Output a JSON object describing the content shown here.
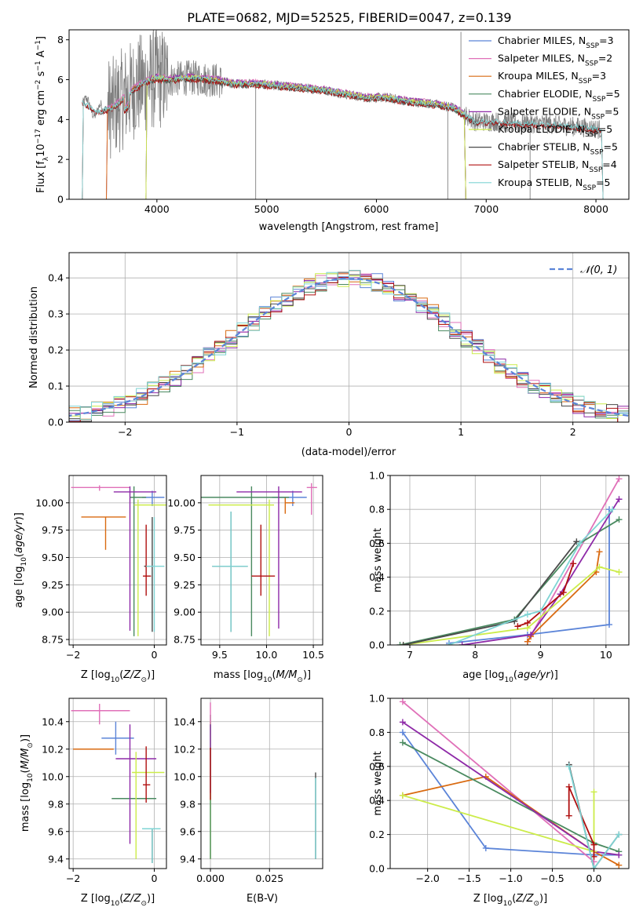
{
  "figure_title": "PLATE=0682, MJD=52525, FIBERID=0047, z=0.139",
  "colors": {
    "Chabrier MILES": "#5b84d8",
    "Salpeter MILES": "#e070b8",
    "Kroupa MILES": "#d96a10",
    "Chabrier ELODIE": "#4a8a60",
    "Salpeter ELODIE": "#8e2aa8",
    "Kroupa ELODIE": "#ccec4a",
    "Chabrier STELIB": "#4a4a4a",
    "Salpeter STELIB": "#b01010",
    "Kroupa STELIB": "#7fd4d4",
    "data": "#808080",
    "normal": "#5b84d8"
  },
  "chart_data": [
    {
      "id": "spectrum",
      "type": "line",
      "xlabel": "wavelength [Angstrom, rest frame]",
      "ylabel": "Flux [f_λ 10^-17 erg cm^-2 s^-1 A^-1]",
      "xlim": [
        3200,
        8300
      ],
      "ylim": [
        0,
        8.5
      ],
      "xticks": [
        4000,
        5000,
        6000,
        7000,
        8000
      ],
      "yticks": [
        0,
        2,
        4,
        6,
        8
      ],
      "grid": false,
      "legend_position": "right",
      "data_continuum": {
        "x": [
          3320,
          3450,
          3600,
          3700,
          3800,
          3900,
          4000,
          4100,
          4300,
          4500,
          4700,
          4900,
          5100,
          5300,
          5500,
          5700,
          5900,
          6100,
          6300,
          6500,
          6700,
          6900,
          7100,
          7300,
          7500,
          7700,
          7900,
          8050
        ],
        "y": [
          4.9,
          4.4,
          4.6,
          5.1,
          5.6,
          5.9,
          6.1,
          6.0,
          6.1,
          6.0,
          5.8,
          5.8,
          5.7,
          5.6,
          5.5,
          5.3,
          5.1,
          5.1,
          4.9,
          4.8,
          4.6,
          3.9,
          3.9,
          3.8,
          3.8,
          3.7,
          3.6,
          3.5
        ]
      },
      "series": [
        {
          "name": "Chabrier MILES",
          "n_ssp": "3",
          "start": 3540,
          "end": 6800,
          "offset": 0.05
        },
        {
          "name": "Salpeter MILES",
          "n_ssp": "2",
          "start": 3540,
          "end": 6800,
          "offset": 0.1
        },
        {
          "name": "Kroupa MILES",
          "n_ssp": "3",
          "start": 3540,
          "end": 6800,
          "offset": 0.0
        },
        {
          "name": "Chabrier ELODIE",
          "n_ssp": "5",
          "start": 3900,
          "end": 6800,
          "offset": -0.05
        },
        {
          "name": "Salpeter ELODIE",
          "n_ssp": "5",
          "start": 3900,
          "end": 6800,
          "offset": 0.08
        },
        {
          "name": "Kroupa ELODIE",
          "n_ssp": "5",
          "start": 3900,
          "end": 6800,
          "offset": 0.03
        },
        {
          "name": "Chabrier STELIB",
          "n_ssp": "5",
          "start": 3320,
          "end": 8050,
          "offset": -0.08
        },
        {
          "name": "Salpeter STELIB",
          "n_ssp": "4",
          "start": 3320,
          "end": 8050,
          "offset": -0.1
        },
        {
          "name": "Kroupa STELIB",
          "n_ssp": "5",
          "start": 3320,
          "end": 8050,
          "offset": 0.0
        }
      ]
    },
    {
      "id": "residuals",
      "type": "histogram",
      "xlabel": "(data-model)/error",
      "ylabel": "Normed distribution",
      "xlim": [
        -2.5,
        2.5
      ],
      "ylim": [
        0,
        0.47
      ],
      "xticks": [
        -2,
        -1,
        0,
        1,
        2
      ],
      "yticks": [
        0.0,
        0.1,
        0.2,
        0.3,
        0.4
      ],
      "grid": true,
      "legend": [
        "𝒩(0, 1)"
      ],
      "legend_position": "top-right",
      "bin_width": 0.1
    },
    {
      "id": "age_vs_Z",
      "type": "errorbar",
      "xlabel": "Z [log10(Z/Z⊙)]",
      "ylabel": "age  [log10(age/yr)]",
      "xlim": [
        -2.1,
        0.3
      ],
      "ylim": [
        8.7,
        10.25
      ],
      "xticks": [
        -2,
        0
      ],
      "yticks": [
        8.75,
        9.0,
        9.25,
        9.5,
        9.75,
        10.0
      ],
      "grid": true,
      "points": [
        {
          "model": "Chabrier MILES",
          "x": -0.05,
          "xerr": [
            0.25,
            0.3
          ],
          "y": 10.05,
          "yerr": [
            0.08,
            0.06
          ]
        },
        {
          "model": "Salpeter MILES",
          "x": -1.35,
          "xerr": [
            0.7,
            0.75
          ],
          "y": 10.14,
          "yerr": [
            0.03,
            0.02
          ]
        },
        {
          "model": "Kroupa MILES",
          "x": -1.2,
          "xerr": [
            0.6,
            0.5
          ],
          "y": 9.87,
          "yerr": [
            0.3,
            0.0
          ]
        },
        {
          "model": "Chabrier ELODIE",
          "x": -0.5,
          "xerr": [
            0.1,
            0.3
          ],
          "y": 10.05,
          "yerr": [
            1.27,
            0.1
          ]
        },
        {
          "model": "Salpeter ELODIE",
          "x": -0.6,
          "xerr": [
            0.4,
            0.65
          ],
          "y": 10.1,
          "yerr": [
            1.27,
            0.05
          ]
        },
        {
          "model": "Kroupa ELODIE",
          "x": -0.4,
          "xerr": [
            0.1,
            0.7
          ],
          "y": 9.98,
          "yerr": [
            1.2,
            0.05
          ]
        },
        {
          "model": "Chabrier STELIB",
          "x": -0.05,
          "xerr": [
            0.2,
            0.0
          ],
          "y": 9.42,
          "yerr": [
            0.6,
            0.45
          ]
        },
        {
          "model": "Salpeter STELIB",
          "x": -0.2,
          "xerr": [
            0.08,
            0.12
          ],
          "y": 9.33,
          "yerr": [
            0.18,
            0.47
          ]
        },
        {
          "model": "Kroupa STELIB",
          "x": 0.0,
          "xerr": [
            0.2,
            0.25
          ],
          "y": 9.42,
          "yerr": [
            0.6,
            0.45
          ]
        }
      ]
    },
    {
      "id": "age_vs_mass",
      "type": "errorbar",
      "xlabel": "mass [log10(M/M⊙)]",
      "ylabel": "",
      "xlim": [
        9.3,
        10.6
      ],
      "ylim": [
        8.7,
        10.25
      ],
      "xticks": [
        9.5,
        10.0,
        10.5
      ],
      "yticks": [
        8.75,
        9.0,
        9.25,
        9.5,
        9.75,
        10.0
      ],
      "grid": true,
      "points": [
        {
          "model": "Chabrier MILES",
          "x": 10.28,
          "xerr": [
            0.22,
            0.15
          ],
          "y": 10.05,
          "yerr": [
            0.08,
            0.06
          ]
        },
        {
          "model": "Salpeter MILES",
          "x": 10.48,
          "xerr": [
            0.05,
            0.06
          ],
          "y": 10.14,
          "yerr": [
            0.25,
            0.04
          ]
        },
        {
          "model": "Kroupa MILES",
          "x": 10.2,
          "xerr": [
            0.0,
            0.1
          ],
          "y": 10.0,
          "yerr": [
            0.1,
            0.05
          ]
        },
        {
          "model": "Chabrier ELODIE",
          "x": 9.84,
          "xerr": [
            0.55,
            0.4
          ],
          "y": 10.05,
          "yerr": [
            1.27,
            0.1
          ]
        },
        {
          "model": "Salpeter ELODIE",
          "x": 10.13,
          "xerr": [
            0.45,
            0.25
          ],
          "y": 10.1,
          "yerr": [
            1.25,
            0.05
          ]
        },
        {
          "model": "Kroupa ELODIE",
          "x": 10.03,
          "xerr": [
            0.65,
            0.05
          ],
          "y": 9.98,
          "yerr": [
            1.2,
            0.05
          ]
        },
        {
          "model": "Chabrier STELIB",
          "x": 9.62,
          "xerr": [
            0.2,
            0.18
          ],
          "y": 9.42,
          "yerr": [
            0.6,
            0.5
          ]
        },
        {
          "model": "Salpeter STELIB",
          "x": 9.94,
          "xerr": [
            0.1,
            0.15
          ],
          "y": 9.33,
          "yerr": [
            0.18,
            0.47
          ]
        },
        {
          "model": "Kroupa STELIB",
          "x": 9.62,
          "xerr": [
            0.2,
            0.18
          ],
          "y": 9.42,
          "yerr": [
            0.6,
            0.5
          ]
        }
      ]
    },
    {
      "id": "weight_vs_age",
      "type": "line",
      "xlabel": "age  [log10(age/yr)]",
      "ylabel": "mass weight",
      "xlim": [
        6.7,
        10.35
      ],
      "ylim": [
        0,
        1.0
      ],
      "xticks": [
        7,
        8,
        9,
        10
      ],
      "yticks": [
        0.0,
        0.2,
        0.4,
        0.6,
        0.8,
        1.0
      ],
      "grid": true,
      "series": [
        {
          "name": "Chabrier MILES",
          "x": [
            7.6,
            8.8,
            10.05,
            10.05
          ],
          "y": [
            0.01,
            0.06,
            0.12,
            0.8
          ]
        },
        {
          "name": "Salpeter MILES",
          "x": [
            8.8,
            10.2
          ],
          "y": [
            0.02,
            0.98
          ]
        },
        {
          "name": "Kroupa MILES",
          "x": [
            8.8,
            8.85,
            9.85,
            9.9
          ],
          "y": [
            0.02,
            0.05,
            0.43,
            0.55
          ]
        },
        {
          "name": "Chabrier ELODIE",
          "x": [
            6.85,
            8.6,
            9.6,
            10.2
          ],
          "y": [
            0.0,
            0.15,
            0.6,
            0.74
          ]
        },
        {
          "name": "Salpeter ELODIE",
          "x": [
            7.8,
            8.85,
            9.3,
            10.2
          ],
          "y": [
            0.0,
            0.06,
            0.3,
            0.86
          ]
        },
        {
          "name": "Kroupa ELODIE",
          "x": [
            6.9,
            8.8,
            9.9,
            10.2
          ],
          "y": [
            0.0,
            0.1,
            0.46,
            0.43
          ]
        },
        {
          "name": "Chabrier STELIB",
          "x": [
            6.9,
            8.6,
            9.55
          ],
          "y": [
            0.0,
            0.14,
            0.61
          ]
        },
        {
          "name": "Salpeter STELIB",
          "x": [
            8.65,
            8.8,
            9.35,
            9.5
          ],
          "y": [
            0.11,
            0.13,
            0.31,
            0.48
          ]
        },
        {
          "name": "Kroupa STELIB",
          "x": [
            7.6,
            8.8,
            9.0,
            9.6,
            10.1
          ],
          "y": [
            0.0,
            0.18,
            0.2,
            0.6,
            0.8
          ]
        }
      ]
    },
    {
      "id": "mass_vs_Z",
      "type": "errorbar",
      "xlabel": "Z [log10(Z/Z⊙)]",
      "ylabel": "mass [log10(M/M⊙)]",
      "xlim": [
        -2.1,
        0.3
      ],
      "ylim": [
        9.33,
        10.57
      ],
      "xticks": [
        -2,
        0
      ],
      "yticks": [
        9.4,
        9.6,
        9.8,
        10.0,
        10.2,
        10.4
      ],
      "grid": true,
      "points": [
        {
          "model": "Chabrier MILES",
          "x": -0.95,
          "xerr": [
            0.35,
            0.45
          ],
          "y": 10.28,
          "yerr": [
            0.12,
            0.12
          ]
        },
        {
          "model": "Salpeter MILES",
          "x": -1.35,
          "xerr": [
            0.7,
            0.75
          ],
          "y": 10.48,
          "yerr": [
            0.1,
            0.05
          ]
        },
        {
          "model": "Kroupa MILES",
          "x": -1.3,
          "xerr": [
            0.7,
            0.3
          ],
          "y": 10.2,
          "yerr": [
            0.0,
            0.0
          ]
        },
        {
          "model": "Chabrier ELODIE",
          "x": -0.65,
          "xerr": [
            0.4,
            0.7
          ],
          "y": 9.84,
          "yerr": [
            0.0,
            0.0
          ]
        },
        {
          "model": "Salpeter ELODIE",
          "x": -0.6,
          "xerr": [
            0.35,
            0.65
          ],
          "y": 10.13,
          "yerr": [
            0.62,
            0.25
          ]
        },
        {
          "model": "Kroupa ELODIE",
          "x": -0.45,
          "xerr": [
            0.1,
            0.7
          ],
          "y": 10.03,
          "yerr": [
            0.63,
            0.15
          ]
        },
        {
          "model": "Chabrier STELIB",
          "x": -0.05,
          "xerr": [
            0.2,
            0.2
          ],
          "y": 9.62,
          "yerr": [
            0.25,
            0.0
          ]
        },
        {
          "model": "Salpeter STELIB",
          "x": -0.2,
          "xerr": [
            0.08,
            0.1
          ],
          "y": 9.94,
          "yerr": [
            0.13,
            0.28
          ]
        },
        {
          "model": "Kroupa STELIB",
          "x": -0.05,
          "xerr": [
            0.25,
            0.2
          ],
          "y": 9.62,
          "yerr": [
            0.25,
            0.0
          ]
        }
      ]
    },
    {
      "id": "mass_vs_ebv",
      "type": "errorbar",
      "xlabel": "E(B-V)",
      "ylabel": "",
      "xlim": [
        -0.004,
        0.0475
      ],
      "ylim": [
        9.33,
        10.57
      ],
      "xticks": [
        0.0,
        0.025
      ],
      "xtick_labels": [
        "0.000",
        "0.025"
      ],
      "yticks": [
        9.4,
        9.6,
        9.8,
        10.0,
        10.2,
        10.4
      ],
      "grid": true,
      "points": [
        {
          "model": "Kroupa ELODIE",
          "x": 0.0,
          "y": 9.9,
          "yerr": [
            0.5,
            0.5
          ]
        },
        {
          "model": "Chabrier ELODIE",
          "x": 0.0,
          "y": 9.95,
          "yerr": [
            0.55,
            0.5
          ]
        },
        {
          "model": "Salpeter MILES",
          "x": 0.0,
          "y": 10.48,
          "yerr": [
            0.1,
            0.06
          ]
        },
        {
          "model": "Salpeter ELODIE",
          "x": 0.0,
          "y": 10.13,
          "yerr": [
            0.25,
            0.25
          ]
        },
        {
          "model": "Salpeter STELIB",
          "x": 0.0,
          "y": 10.03,
          "yerr": [
            0.2,
            0.18
          ]
        },
        {
          "model": "Chabrier STELIB",
          "x": 0.0445,
          "y": 9.72,
          "yerr": [
            0.32,
            0.31
          ]
        },
        {
          "model": "Kroupa STELIB",
          "x": 0.0445,
          "y": 9.72,
          "yerr": [
            0.32,
            0.27
          ]
        }
      ]
    },
    {
      "id": "weight_vs_Z",
      "type": "line",
      "xlabel": "Z [log10(Z/Z⊙)]",
      "ylabel": "mass weight",
      "xlim": [
        -2.45,
        0.42
      ],
      "ylim": [
        0,
        1.0
      ],
      "xticks": [
        -2.0,
        -1.5,
        -1.0,
        -0.5,
        0.0
      ],
      "yticks": [
        0.0,
        0.2,
        0.4,
        0.6,
        0.8,
        1.0
      ],
      "grid": true,
      "series": [
        {
          "name": "Chabrier MILES",
          "x": [
            -2.3,
            -1.3,
            0.0,
            0.3
          ],
          "y": [
            0.8,
            0.12,
            0.08,
            0.08
          ]
        },
        {
          "name": "Salpeter MILES",
          "x": [
            -2.3,
            0.0
          ],
          "y": [
            0.98,
            0.04
          ]
        },
        {
          "name": "Kroupa MILES",
          "x": [
            -2.3,
            -1.3,
            0.0,
            0.3
          ],
          "y": [
            0.43,
            0.54,
            0.1,
            0.02
          ]
        },
        {
          "name": "Chabrier ELODIE",
          "x": [
            -2.3,
            0.0,
            0.3
          ],
          "y": [
            0.74,
            0.15,
            0.1
          ]
        },
        {
          "name": "Salpeter ELODIE",
          "x": [
            -2.3,
            0.0,
            0.3
          ],
          "y": [
            0.86,
            0.1,
            0.08
          ]
        },
        {
          "name": "Kroupa ELODIE",
          "x": [
            -2.3,
            0.0,
            0.0
          ],
          "y": [
            0.43,
            0.1,
            0.45
          ]
        },
        {
          "name": "Chabrier STELIB",
          "x": [
            -0.3,
            0.0,
            0.3
          ],
          "y": [
            0.61,
            0.0,
            0.2
          ]
        },
        {
          "name": "Salpeter STELIB",
          "x": [
            -0.3,
            -0.3,
            0.0,
            0.0
          ],
          "y": [
            0.31,
            0.48,
            0.14,
            0.07
          ]
        },
        {
          "name": "Kroupa STELIB",
          "x": [
            -0.3,
            0.0,
            0.3
          ],
          "y": [
            0.6,
            0.0,
            0.2
          ]
        }
      ]
    }
  ]
}
